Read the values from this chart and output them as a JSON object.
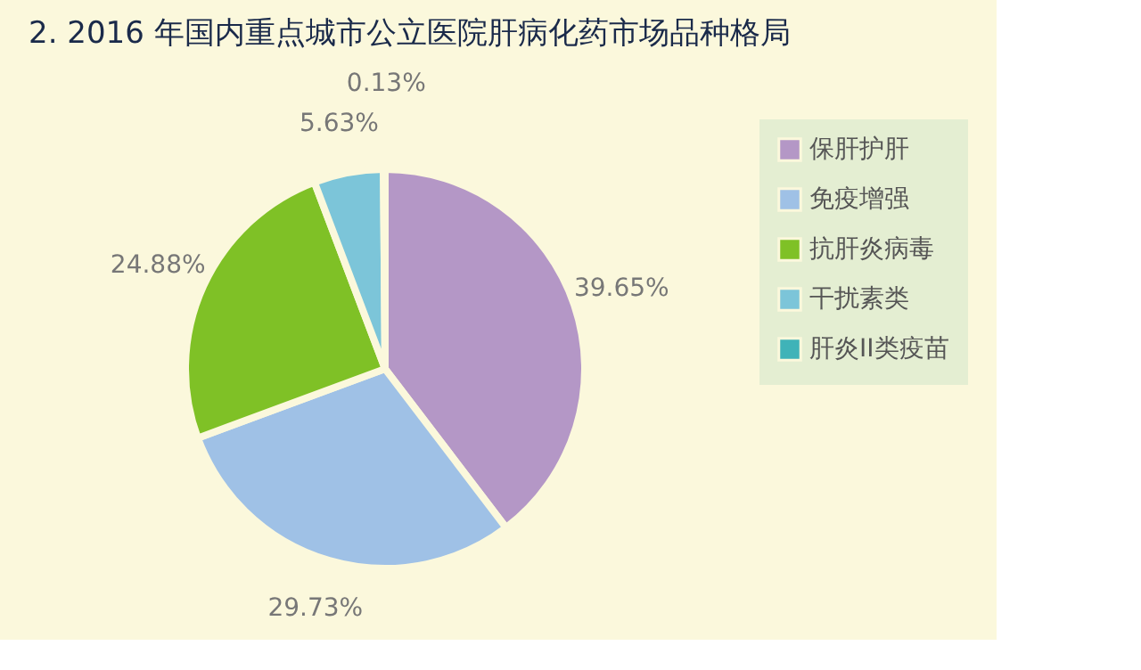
{
  "chart_data": {
    "type": "pie",
    "title": "2. 2016 年国内重点城市公立医院肝病化药市场品种格局",
    "categories": [
      "保肝护肝",
      "免疫增强",
      "抗肝炎病毒",
      "干扰素类",
      "肝炎II类疫苗"
    ],
    "values": [
      39.65,
      29.73,
      24.88,
      5.63,
      0.13
    ],
    "colors": [
      "#b497c6",
      "#9fc1e6",
      "#7fc126",
      "#7cc5d9",
      "#3fb3b8"
    ],
    "value_labels": [
      "39.65%",
      "29.73%",
      "24.88%",
      "5.63%",
      "0.13%"
    ],
    "legend": "right"
  }
}
